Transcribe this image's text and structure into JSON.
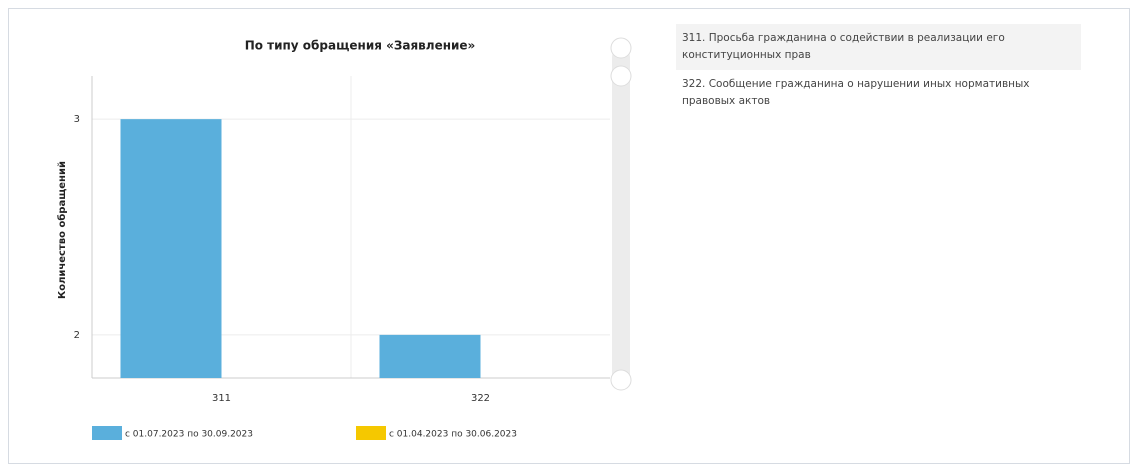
{
  "chart_data": {
    "type": "bar",
    "title": "По типу обращения «Заявление»",
    "y_label": "Количество обращений",
    "categories": [
      "311",
      "322"
    ],
    "series": [
      {
        "name": "с 01.07.2023 по 30.09.2023",
        "color": "#5aafdc",
        "values": [
          3,
          2
        ]
      },
      {
        "name": "с 01.04.2023 по 30.06.2023",
        "color": "#f5c800",
        "values": [
          null,
          null
        ]
      }
    ],
    "ylim": [
      1.8,
      3.2
    ],
    "yticks": [
      2,
      3
    ],
    "grid": true
  },
  "side_list": [
    "311. Просьба гражданина о содействии в реализации его конституционных прав",
    "322. Сообщение гражданина о нарушении иных нормативных правовых актов"
  ]
}
